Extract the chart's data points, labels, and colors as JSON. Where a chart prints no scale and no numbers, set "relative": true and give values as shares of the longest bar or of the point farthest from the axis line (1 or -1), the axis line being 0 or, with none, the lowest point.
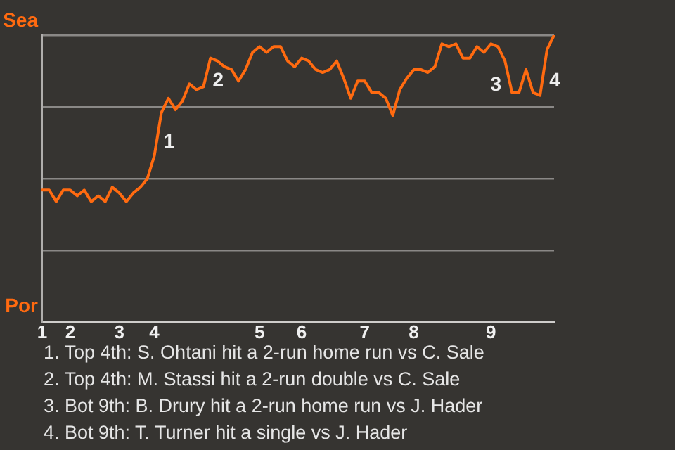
{
  "chart_data": {
    "type": "line",
    "categories": [
      "1",
      null,
      null,
      null,
      "2",
      null,
      null,
      null,
      null,
      null,
      null,
      "3",
      null,
      null,
      null,
      null,
      "4",
      null,
      null,
      null,
      null,
      null,
      null,
      null,
      null,
      null,
      null,
      null,
      null,
      null,
      null,
      "5",
      null,
      null,
      null,
      null,
      null,
      "6",
      null,
      null,
      null,
      null,
      null,
      null,
      null,
      null,
      "7",
      null,
      null,
      null,
      null,
      null,
      null,
      "8",
      null,
      null,
      null,
      null,
      null,
      null,
      null,
      null,
      null,
      null,
      "9",
      null,
      null,
      null,
      null,
      null,
      null,
      null,
      null,
      null
    ],
    "relative": true,
    "series": [
      {
        "color": "#ff6a10",
        "values": [
          0.46,
          0.46,
          0.42,
          0.46,
          0.46,
          0.44,
          0.46,
          0.42,
          0.44,
          0.42,
          0.47,
          0.45,
          0.42,
          0.45,
          0.47,
          0.5,
          0.58,
          0.73,
          0.78,
          0.74,
          0.77,
          0.83,
          0.81,
          0.82,
          0.92,
          0.91,
          0.89,
          0.88,
          0.84,
          0.88,
          0.94,
          0.96,
          0.94,
          0.96,
          0.96,
          0.91,
          0.89,
          0.92,
          0.91,
          0.88,
          0.87,
          0.88,
          0.91,
          0.85,
          0.78,
          0.84,
          0.84,
          0.8,
          0.8,
          0.78,
          0.72,
          0.81,
          0.85,
          0.88,
          0.88,
          0.87,
          0.89,
          0.97,
          0.96,
          0.97,
          0.92,
          0.92,
          0.96,
          0.94,
          0.97,
          0.96,
          0.91,
          0.8,
          0.8,
          0.88,
          0.8,
          0.79,
          0.95,
          1
        ]
      }
    ],
    "grid": "y",
    "marker": "none",
    "line_style": "solid",
    "annotations": [
      "Sea",
      "Por",
      "1",
      "2",
      "3",
      "4",
      "1. Top 4th: S. Ohtani hit a 2-run home run vs C. Sale",
      "2. Top 4th: M. Stassi hit a 2-run double vs C. Sale",
      "3. Bot 9th: B. Drury hit a 2-run home run vs J. Hader",
      "4. Bot 9th: T. Turner hit a single vs J. Hader"
    ]
  }
}
